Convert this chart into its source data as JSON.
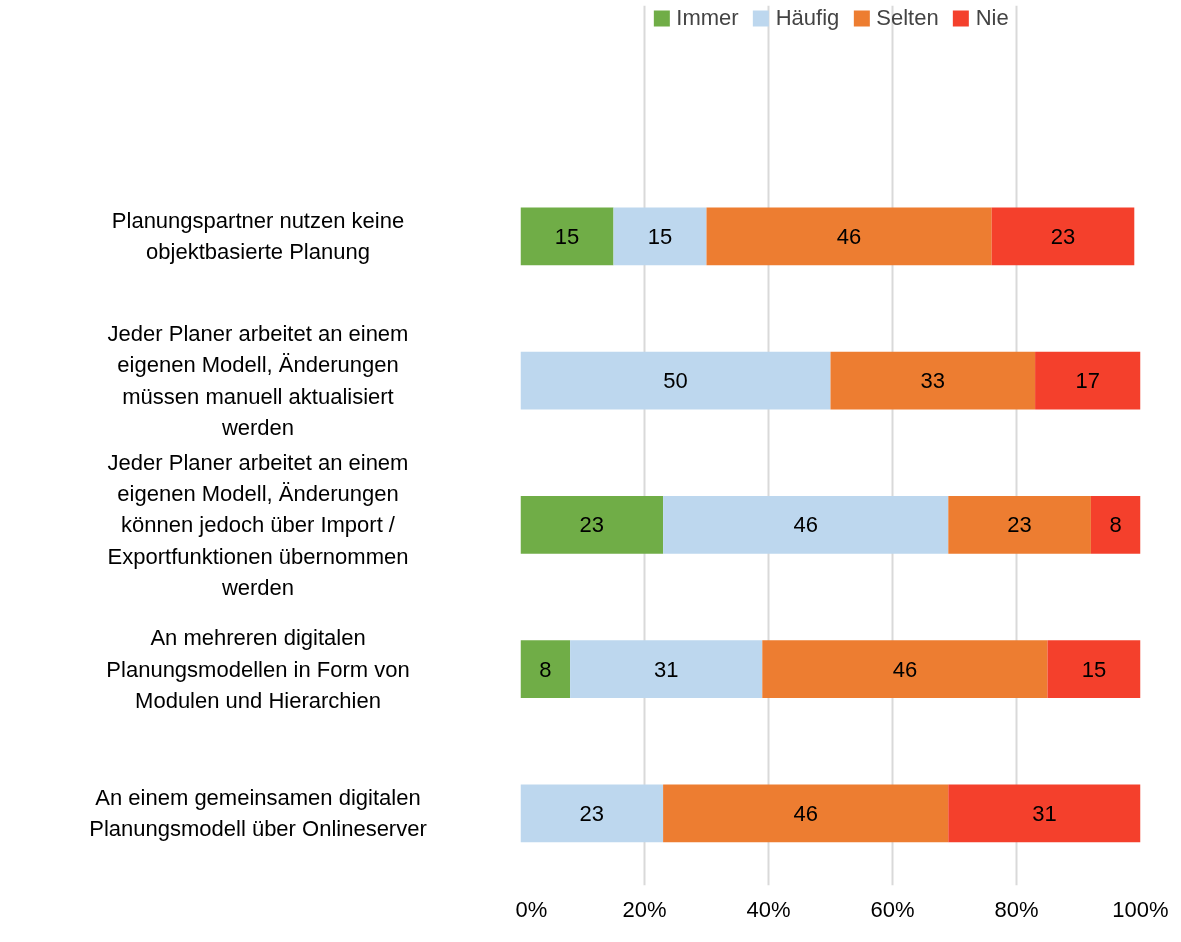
{
  "chart_data": {
    "type": "bar",
    "orientation": "horizontal",
    "stacked": true,
    "data_labels": true,
    "grid": "x",
    "legend": "top",
    "categories": [
      "Planungspartner nutzen keine objektbasierte Planung",
      "Jeder Planer arbeitet an einem eigenen Modell, Änderungen müssen manuell aktualisiert werden",
      "Jeder Planer arbeitet an einem eigenen Modell, Änderungen können jedoch über Import / Exportfunktionen übernommen werden",
      "An mehreren digitalen Planungsmodellen in Form von Modulen und Hierarchien",
      "An einem gemeinsamen digitalen Planungsmodell über Onlineserver"
    ],
    "series": [
      {
        "name": "Immer",
        "color": "#70ad47",
        "values": [
          15,
          null,
          23,
          8,
          null
        ]
      },
      {
        "name": "Häufig",
        "color": "#bdd7ee",
        "values": [
          15,
          50,
          46,
          31,
          23
        ]
      },
      {
        "name": "Selten",
        "color": "#ed7d31",
        "values": [
          46,
          33,
          23,
          46,
          46
        ]
      },
      {
        "name": "Nie",
        "color": "#f4402c",
        "values": [
          23,
          17,
          8,
          15,
          31
        ]
      }
    ],
    "xlim": [
      0,
      100
    ],
    "xticks": [
      {
        "value": 0,
        "label": "0%"
      },
      {
        "value": 20,
        "label": "20%"
      },
      {
        "value": 40,
        "label": "40%"
      },
      {
        "value": 60,
        "label": "60%"
      },
      {
        "value": 80,
        "label": "80%"
      },
      {
        "value": 100,
        "label": "100%"
      }
    ]
  }
}
